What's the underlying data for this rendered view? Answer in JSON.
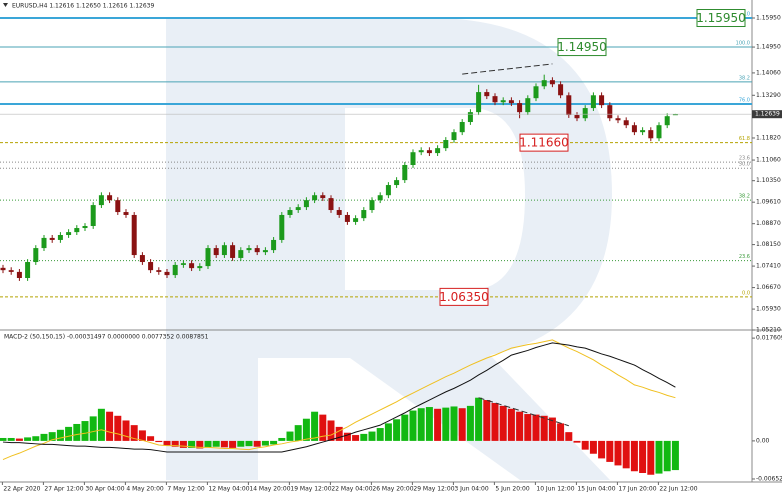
{
  "chart_data": [
    {
      "type": "candlestick",
      "title": "EURUSD,H4  1.12616 1.12650 1.12616 1.12639",
      "categories": [
        null,
        null,
        "22 Apr 2020",
        null,
        null,
        null,
        null,
        "27 Apr 12:00",
        null,
        null,
        null,
        null,
        "30 Apr 04:00",
        null,
        null,
        null,
        null,
        "4 May 20:00",
        null,
        null,
        null,
        null,
        "7 May 12:00",
        null,
        null,
        null,
        null,
        "12 May 04:00",
        null,
        null,
        null,
        null,
        "14 May 20:00",
        null,
        null,
        null,
        null,
        "19 May 12:00",
        null,
        null,
        null,
        null,
        "22 May 04:00",
        null,
        null,
        null,
        null,
        "26 May 20:00",
        null,
        null,
        null,
        null,
        "29 May 12:00",
        null,
        null,
        null,
        null,
        "3 Jun 04:00",
        null,
        null,
        null,
        null,
        "5 Jun 20:00",
        null,
        null,
        null,
        null,
        "10 Jun 12:00",
        null,
        null,
        null,
        null,
        "15 Jun 04:00",
        null,
        null,
        null,
        null,
        "17 Jun 20:00",
        null,
        null,
        null,
        null,
        "22 Jun 12:00"
      ],
      "open": [
        1.0735,
        1.0727,
        1.0721,
        1.07,
        1.0755,
        1.0803,
        1.0838,
        1.0831,
        1.0848,
        1.0858,
        1.0872,
        1.0879,
        1.0951,
        1.0985,
        1.0968,
        1.0927,
        1.0917,
        1.0779,
        1.0755,
        1.0727,
        1.0721,
        1.071,
        1.0745,
        1.0751,
        1.0734,
        1.0741,
        1.0803,
        1.0779,
        1.0813,
        1.0769,
        1.0796,
        1.0803,
        1.0789,
        1.0796,
        1.0831,
        1.0917,
        1.0934,
        1.0944,
        1.0968,
        1.0985,
        1.0975,
        1.0934,
        1.0917,
        1.0893,
        1.0906,
        1.0934,
        1.0968,
        1.0985,
        1.102,
        1.1037,
        1.1089,
        1.1133,
        1.114,
        1.113,
        1.1147,
        1.1175,
        1.1202,
        1.1237,
        1.1271,
        1.134,
        1.1326,
        1.1305,
        1.1312,
        1.1302,
        1.1271,
        1.1319,
        1.136,
        1.1381,
        1.1367,
        1.1329,
        1.1261,
        1.125,
        1.1285,
        1.1329,
        1.1295,
        1.125,
        1.1243,
        1.1226,
        1.1202,
        1.1209,
        1.1181,
        1.1226,
        1.12616
      ],
      "high": [
        1.0745,
        1.0737,
        1.0731,
        1.0765,
        1.0813,
        1.0848,
        1.0848,
        1.0858,
        1.0868,
        1.0882,
        1.0889,
        1.0961,
        1.0995,
        1.0995,
        1.0978,
        1.0937,
        1.0927,
        1.0789,
        1.0765,
        1.0737,
        1.0731,
        1.0755,
        1.0761,
        1.0761,
        1.0751,
        1.0813,
        1.0813,
        1.0823,
        1.0823,
        1.0806,
        1.0813,
        1.0813,
        1.0806,
        1.0841,
        1.0927,
        1.0944,
        1.0954,
        1.0978,
        1.0995,
        1.0995,
        1.0985,
        1.0944,
        1.0927,
        1.0916,
        1.0944,
        1.0978,
        1.0995,
        1.103,
        1.1047,
        1.1099,
        1.1143,
        1.115,
        1.115,
        1.1157,
        1.1185,
        1.1212,
        1.1247,
        1.1281,
        1.1365,
        1.135,
        1.1336,
        1.1322,
        1.1322,
        1.1312,
        1.1329,
        1.137,
        1.14,
        1.1391,
        1.1377,
        1.1339,
        1.1271,
        1.1295,
        1.1339,
        1.1339,
        1.1305,
        1.126,
        1.1253,
        1.1236,
        1.1219,
        1.1219,
        1.1236,
        1.1267,
        1.1265
      ],
      "low": [
        1.0717,
        1.0711,
        1.069,
        1.069,
        1.0745,
        1.0793,
        1.0821,
        1.0821,
        1.0838,
        1.0848,
        1.0862,
        1.0869,
        1.0941,
        1.0958,
        1.0917,
        1.0907,
        1.0769,
        1.0745,
        1.0717,
        1.0711,
        1.07,
        1.07,
        1.0735,
        1.0724,
        1.0724,
        1.0731,
        1.0769,
        1.0769,
        1.0759,
        1.0759,
        1.0786,
        1.0779,
        1.0779,
        1.0786,
        1.0821,
        1.0907,
        1.0924,
        1.0934,
        1.0958,
        1.0965,
        1.0924,
        1.0907,
        1.0883,
        1.0883,
        1.0896,
        1.0924,
        1.0958,
        1.0975,
        1.101,
        1.1027,
        1.1079,
        1.1123,
        1.112,
        1.112,
        1.1137,
        1.1165,
        1.1192,
        1.1227,
        1.1261,
        1.1316,
        1.1295,
        1.1295,
        1.1292,
        1.125,
        1.1261,
        1.1309,
        1.135,
        1.1357,
        1.1319,
        1.1251,
        1.124,
        1.124,
        1.1275,
        1.1285,
        1.124,
        1.1233,
        1.1216,
        1.1192,
        1.1192,
        1.1171,
        1.1171,
        1.1216,
        1.12616
      ],
      "close": [
        1.0727,
        1.0721,
        1.07,
        1.0755,
        1.0803,
        1.0838,
        1.0831,
        1.0848,
        1.0858,
        1.0872,
        1.0879,
        1.0951,
        1.0985,
        1.0968,
        1.0927,
        1.0917,
        1.0779,
        1.0755,
        1.0727,
        1.0721,
        1.071,
        1.0745,
        1.0751,
        1.0734,
        1.0741,
        1.0803,
        1.0779,
        1.0813,
        1.0769,
        1.0796,
        1.0803,
        1.0789,
        1.0796,
        1.0831,
        1.0917,
        1.0934,
        1.0944,
        1.0968,
        1.0985,
        1.0975,
        1.0934,
        1.0917,
        1.0893,
        1.0906,
        1.0934,
        1.0968,
        1.0985,
        1.102,
        1.1037,
        1.1089,
        1.1133,
        1.114,
        1.113,
        1.1147,
        1.1175,
        1.1202,
        1.1237,
        1.1271,
        1.134,
        1.1326,
        1.1305,
        1.1312,
        1.1302,
        1.1271,
        1.1319,
        1.136,
        1.1381,
        1.1367,
        1.1329,
        1.1261,
        1.125,
        1.1285,
        1.1329,
        1.1295,
        1.125,
        1.1243,
        1.1226,
        1.1202,
        1.1209,
        1.1181,
        1.1226,
        1.1257,
        1.12639
      ],
      "up_color": "#1c9a1c",
      "down_color": "#8a1212",
      "ylim": [
        1.0521,
        1.1657
      ],
      "yticks": [
        {
          "value": 1.1595,
          "label": "1.15950"
        },
        {
          "value": 1.1495,
          "label": "1.14950"
        },
        {
          "value": 1.1406,
          "label": "1.14060"
        },
        {
          "value": 1.1329,
          "label": "1.13290"
        },
        {
          "value": 1.1182,
          "label": "1.11820"
        },
        {
          "value": 1.1106,
          "label": "1.11060"
        },
        {
          "value": 1.1035,
          "label": "1.10350"
        },
        {
          "value": 1.0961,
          "label": "1.09610"
        },
        {
          "value": 1.0887,
          "label": "1.08870"
        },
        {
          "value": 1.0815,
          "label": "1.08150"
        },
        {
          "value": 1.0741,
          "label": "1.07410"
        },
        {
          "value": 1.0667,
          "label": "1.06670"
        },
        {
          "value": 1.0593,
          "label": "1.05930"
        },
        {
          "value": 1.0521,
          "label": "1.05210"
        }
      ],
      "levels": [
        {
          "value": 1.1595,
          "label": "0.0",
          "color": "#3aa6d8",
          "width": 2,
          "dash": "none"
        },
        {
          "value": 1.1495,
          "label": "100.0",
          "color": "#4aa3b5",
          "width": 1,
          "dash": "none"
        },
        {
          "value": 1.1375,
          "label": "38.2",
          "color": "#4aa3b5",
          "width": 1,
          "dash": "none"
        },
        {
          "value": 1.1299,
          "label": "76.0",
          "color": "#3aa6d8",
          "width": 2,
          "dash": "none"
        },
        {
          "value": 1.1166,
          "label": "61.8",
          "color": "#b5a300",
          "width": 1,
          "dash": "3 2"
        },
        {
          "value": 1.1099,
          "label": "23.6",
          "color": "#888888",
          "width": 1,
          "dash": "1 2"
        },
        {
          "value": 1.1078,
          "label": "50.0",
          "color": "#888888",
          "width": 1,
          "dash": "1 2"
        },
        {
          "value": 1.0968,
          "label": "38.2",
          "color": "#3a9a3a",
          "width": 1,
          "dash": "1 2"
        },
        {
          "value": 1.076,
          "label": "23.6",
          "color": "#3a9a3a",
          "width": 1,
          "dash": "1 2"
        },
        {
          "value": 1.0635,
          "label": "0.0",
          "color": "#b5a300",
          "width": 1,
          "dash": "3 2"
        }
      ],
      "price_labels": [
        {
          "value": 1.1595,
          "label": "1.15950",
          "color": "#2e8b2e"
        },
        {
          "value": 1.1495,
          "label": "1.14950",
          "color": "#2e8b2e"
        },
        {
          "value": 1.1166,
          "label": "1.11660",
          "color": "#d62020"
        },
        {
          "value": 1.0635,
          "label": "1.06350",
          "color": "#d62020"
        }
      ],
      "trendlines": [
        {
          "x": [
            56,
            67
          ],
          "y": [
            1.1402,
            1.1437
          ]
        }
      ]
    },
    {
      "type": "macd",
      "title": "MACD-2 (50,150,15) -0.00031497 0.0000000 0.0077352 0.0087851",
      "histogram": {
        "values": [
          0.0005,
          0.0005,
          0.0004,
          0.0006,
          0.0008,
          0.0012,
          0.0015,
          0.0019,
          0.0024,
          0.0029,
          0.0034,
          0.0042,
          0.0055,
          0.005,
          0.0043,
          0.0035,
          0.0027,
          0.0018,
          0.0008,
          -0.0002,
          -0.0008,
          -0.001,
          -0.0012,
          -0.0012,
          -0.0013,
          -0.0011,
          -0.001,
          -0.0011,
          -0.0012,
          -0.001,
          -0.0009,
          -0.001,
          -0.0008,
          -0.0006,
          0.0005,
          0.0016,
          0.0027,
          0.0038,
          0.005,
          0.0045,
          0.0035,
          0.0024,
          0.0014,
          0.001,
          0.0012,
          0.0016,
          0.0022,
          0.003,
          0.0037,
          0.0045,
          0.0052,
          0.0056,
          0.0058,
          0.0055,
          0.0057,
          0.0059,
          0.0056,
          0.006,
          0.0074,
          0.007,
          0.0065,
          0.006,
          0.0055,
          0.005,
          0.0046,
          0.0045,
          0.0043,
          0.004,
          0.003,
          0.0015,
          -0.0003,
          -0.0015,
          -0.0022,
          -0.003,
          -0.0036,
          -0.0042,
          -0.0047,
          -0.0052,
          -0.0055,
          -0.0058,
          -0.0056,
          -0.0052,
          -0.005
        ],
        "up_color": "#12b812",
        "down_color": "#e01010"
      },
      "main": {
        "color": "#111111",
        "values": [
          -0.0002,
          -0.0003,
          -0.0003,
          -0.0004,
          -0.0005,
          -0.0006,
          -0.0006,
          -0.0007,
          -0.0008,
          -0.0009,
          -0.0009,
          -0.001,
          -0.0011,
          -0.0011,
          -0.0012,
          -0.0013,
          -0.0014,
          -0.0014,
          -0.0015,
          -0.0017,
          -0.0019,
          -0.0019,
          -0.0019,
          -0.0019,
          -0.0019,
          -0.0019,
          -0.0019,
          -0.0019,
          -0.0019,
          -0.0019,
          -0.0019,
          -0.0019,
          -0.0019,
          -0.0019,
          -0.0019,
          -0.0016,
          -0.0013,
          -0.001,
          -0.0006,
          -0.0002,
          0.0002,
          0.0006,
          0.001,
          0.0015,
          0.0019,
          0.0023,
          0.0027,
          0.0034,
          0.0041,
          0.0048,
          0.0056,
          0.0063,
          0.007,
          0.0077,
          0.0084,
          0.009,
          0.0097,
          0.0104,
          0.0113,
          0.0121,
          0.013,
          0.0138,
          0.0147,
          0.0151,
          0.0155,
          0.016,
          0.0164,
          0.0168,
          0.0166,
          0.0164,
          0.0161,
          0.0159,
          0.0154,
          0.0149,
          0.0145,
          0.014,
          0.0135,
          0.013,
          0.0122,
          0.0115,
          0.0107,
          0.01,
          0.0092
        ]
      },
      "signal": {
        "color": "#f0c020",
        "values": [
          -0.0032,
          -0.0026,
          -0.0021,
          -0.0015,
          -0.0009,
          -0.0004,
          0.0002,
          0.0005,
          0.0008,
          0.0011,
          0.0013,
          0.0016,
          0.0019,
          0.0015,
          0.0012,
          0.0008,
          0.0004,
          0.0001,
          -0.0003,
          -0.0007,
          -0.0008,
          -0.0008,
          -0.0009,
          -0.001,
          -0.0011,
          -0.0011,
          -0.0012,
          -0.0013,
          -0.0013,
          -0.0014,
          -0.0015,
          -0.0012,
          -0.001,
          -0.0007,
          -0.0005,
          -0.0002,
          0.0,
          0.0003,
          0.0005,
          0.0008,
          0.001,
          0.0017,
          0.0024,
          0.0032,
          0.0039,
          0.0046,
          0.0053,
          0.006,
          0.0067,
          0.0075,
          0.0082,
          0.0089,
          0.0096,
          0.0103,
          0.011,
          0.0116,
          0.0123,
          0.013,
          0.0136,
          0.0142,
          0.0147,
          0.0153,
          0.0159,
          0.0162,
          0.0165,
          0.0167,
          0.017,
          0.0173,
          0.0166,
          0.0159,
          0.0153,
          0.0146,
          0.0139,
          0.013,
          0.0122,
          0.0113,
          0.0105,
          0.0096,
          0.0092,
          0.0087,
          0.0083,
          0.0078,
          0.0074
        ]
      },
      "ylim": [
        -0.0067,
        0.019
      ],
      "yticks": [
        0.017609,
        {
          "value": 0,
          "label": "0.00"
        },
        -0.006524
      ],
      "trendlines": [
        {
          "x": [
            58,
            69
          ],
          "y": [
            0.0074,
            0.0026
          ]
        }
      ]
    }
  ]
}
